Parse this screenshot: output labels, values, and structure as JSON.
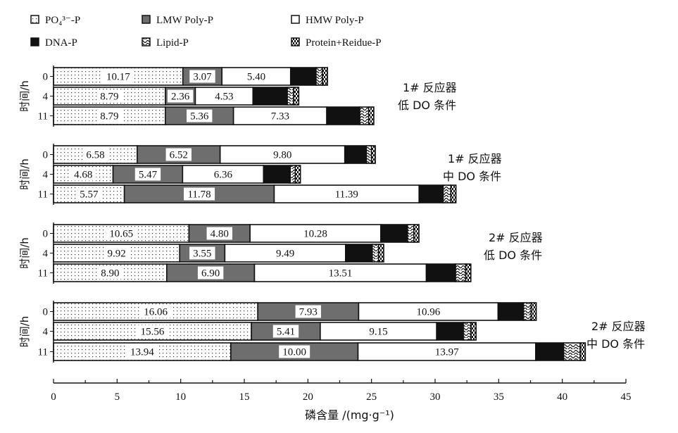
{
  "chart_data": {
    "type": "bar",
    "orientation": "horizontal",
    "stacked": true,
    "xlabel": "磷含量 /(mg·g⁻¹)",
    "xlim": [
      0,
      45
    ],
    "x_ticks": [
      "0",
      "5",
      "10",
      "15",
      "20",
      "25",
      "30",
      "35",
      "40",
      "45"
    ],
    "y_axis_label": "时间/h",
    "legend": [
      {
        "label": "PO₄³⁻-P",
        "pattern": "dots"
      },
      {
        "label": "LMW Poly-P",
        "pattern": "gray"
      },
      {
        "label": "HMW Poly-P",
        "pattern": "white"
      },
      {
        "label": "DNA-P",
        "pattern": "black"
      },
      {
        "label": "Lipid-P",
        "pattern": "wave"
      },
      {
        "label": "Protein+Reidue-P",
        "pattern": "brick"
      }
    ],
    "groups": [
      {
        "reactor": "1# 反应器",
        "condition": "低 DO 条件",
        "rows": [
          {
            "time": "0",
            "values": [
              10.17,
              3.07,
              5.4,
              2.0,
              0.5,
              0.4
            ]
          },
          {
            "time": "4",
            "values": [
              8.79,
              2.36,
              4.53,
              2.7,
              0.5,
              0.4
            ]
          },
          {
            "time": "11",
            "values": [
              8.79,
              5.36,
              7.33,
              2.6,
              0.7,
              0.4
            ]
          }
        ]
      },
      {
        "reactor": "1# 反应器",
        "condition": "中 DO 条件",
        "rows": [
          {
            "time": "0",
            "values": [
              6.58,
              6.52,
              9.8,
              1.7,
              0.4,
              0.3
            ]
          },
          {
            "time": "4",
            "values": [
              4.68,
              5.47,
              6.36,
              2.1,
              0.4,
              0.4
            ]
          },
          {
            "time": "11",
            "values": [
              5.57,
              11.78,
              11.39,
              1.9,
              0.6,
              0.4
            ]
          }
        ]
      },
      {
        "reactor": "2# 反应器",
        "condition": "低 DO 条件",
        "rows": [
          {
            "time": "0",
            "values": [
              10.65,
              4.8,
              10.28,
              2.1,
              0.5,
              0.4
            ]
          },
          {
            "time": "4",
            "values": [
              9.92,
              3.55,
              9.49,
              2.1,
              0.5,
              0.4
            ]
          },
          {
            "time": "11",
            "values": [
              8.9,
              6.9,
              13.51,
              2.3,
              0.8,
              0.4
            ]
          }
        ]
      },
      {
        "reactor": "2# 反应器",
        "condition": "中 DO 条件",
        "rows": [
          {
            "time": "0",
            "values": [
              16.06,
              7.93,
              10.96,
              2.0,
              0.6,
              0.4
            ]
          },
          {
            "time": "4",
            "values": [
              15.56,
              5.41,
              9.15,
              2.1,
              0.6,
              0.4
            ]
          },
          {
            "time": "11",
            "values": [
              13.94,
              10.0,
              13.97,
              2.2,
              1.3,
              0.4
            ]
          }
        ]
      }
    ],
    "data_labels_shown_for": [
      "PO₄³⁻-P",
      "LMW Poly-P",
      "HMW Poly-P"
    ]
  }
}
